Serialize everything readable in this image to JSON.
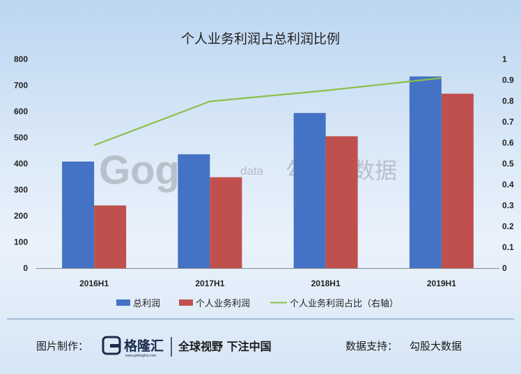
{
  "chart_data": {
    "type": "bar",
    "title": "个人业务利润占总利润比例",
    "categories": [
      "2016H1",
      "2017H1",
      "2018H1",
      "2019H1"
    ],
    "series": [
      {
        "name": "总利润",
        "values": [
          408,
          436,
          594,
          734
        ],
        "color": "#4472c4",
        "axis": "left"
      },
      {
        "name": "个人业务利润",
        "values": [
          240,
          348,
          505,
          668
        ],
        "color": "#c0504d",
        "axis": "left"
      }
    ],
    "line_series": [
      {
        "name": "个人业务利润占比（右轴）",
        "values": [
          0.588,
          0.798,
          0.85,
          0.91
        ],
        "color": "#8cbf4a",
        "axis": "right"
      }
    ],
    "ylim_left": [
      0,
      800
    ],
    "yticks_left": [
      "0",
      "100",
      "200",
      "300",
      "400",
      "500",
      "600",
      "700",
      "800"
    ],
    "ylim_right": [
      0,
      1
    ],
    "yticks_right": [
      "0",
      "0.1",
      "0.2",
      "0.3",
      "0.4",
      "0.5",
      "0.6",
      "0.7",
      "0.8",
      "0.9",
      "1"
    ],
    "legend_position": "bottom",
    "grid": false
  },
  "watermark": {
    "logo_text": "Gogu",
    "data_text": "data",
    "cn_text": "勾股大数据"
  },
  "footer": {
    "made_by_label": "图片制作：",
    "logo_cn": "格隆汇",
    "logo_url": "www.gelonghui.com",
    "slogan": "全球视野 下注中国",
    "support_label": "数据支持：",
    "support_value": "勾股大数据"
  }
}
